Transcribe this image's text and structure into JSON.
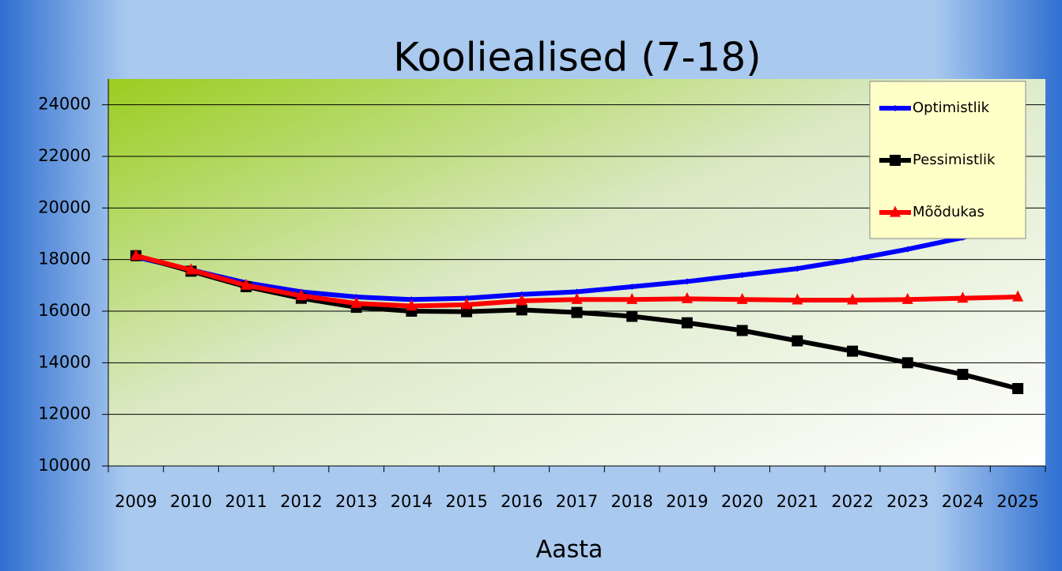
{
  "chart_data": {
    "type": "line",
    "title": "Kooliealised (7-18)",
    "x_label": "Aasta",
    "categories": [
      "2009",
      "2010",
      "2011",
      "2012",
      "2013",
      "2014",
      "2015",
      "2016",
      "2017",
      "2018",
      "2019",
      "2020",
      "2021",
      "2022",
      "2023",
      "2024",
      "2025"
    ],
    "series": [
      {
        "name": "Optimistlik",
        "color": "#0000ff",
        "marker": "diamond",
        "values": [
          18100,
          17600,
          17100,
          16750,
          16550,
          16450,
          16500,
          16650,
          16750,
          16950,
          17150,
          17400,
          17650,
          18000,
          18400,
          18850,
          19400
        ]
      },
      {
        "name": "Pessimistlik",
        "color": "#000000",
        "marker": "square",
        "values": [
          18150,
          17550,
          16950,
          16500,
          16150,
          16000,
          15980,
          16050,
          15950,
          15800,
          15550,
          15250,
          14850,
          14450,
          14000,
          13550,
          13000
        ]
      },
      {
        "name": "Mõõdukas",
        "color": "#ff0000",
        "marker": "triangle",
        "values": [
          18150,
          17600,
          17000,
          16600,
          16300,
          16200,
          16250,
          16400,
          16450,
          16450,
          16480,
          16450,
          16430,
          16430,
          16450,
          16500,
          16550
        ]
      }
    ],
    "ylim": [
      10000,
      25000
    ],
    "yticks": [
      10000,
      12000,
      14000,
      16000,
      18000,
      20000,
      22000,
      24000
    ],
    "grid": true,
    "legend": "upper right"
  }
}
